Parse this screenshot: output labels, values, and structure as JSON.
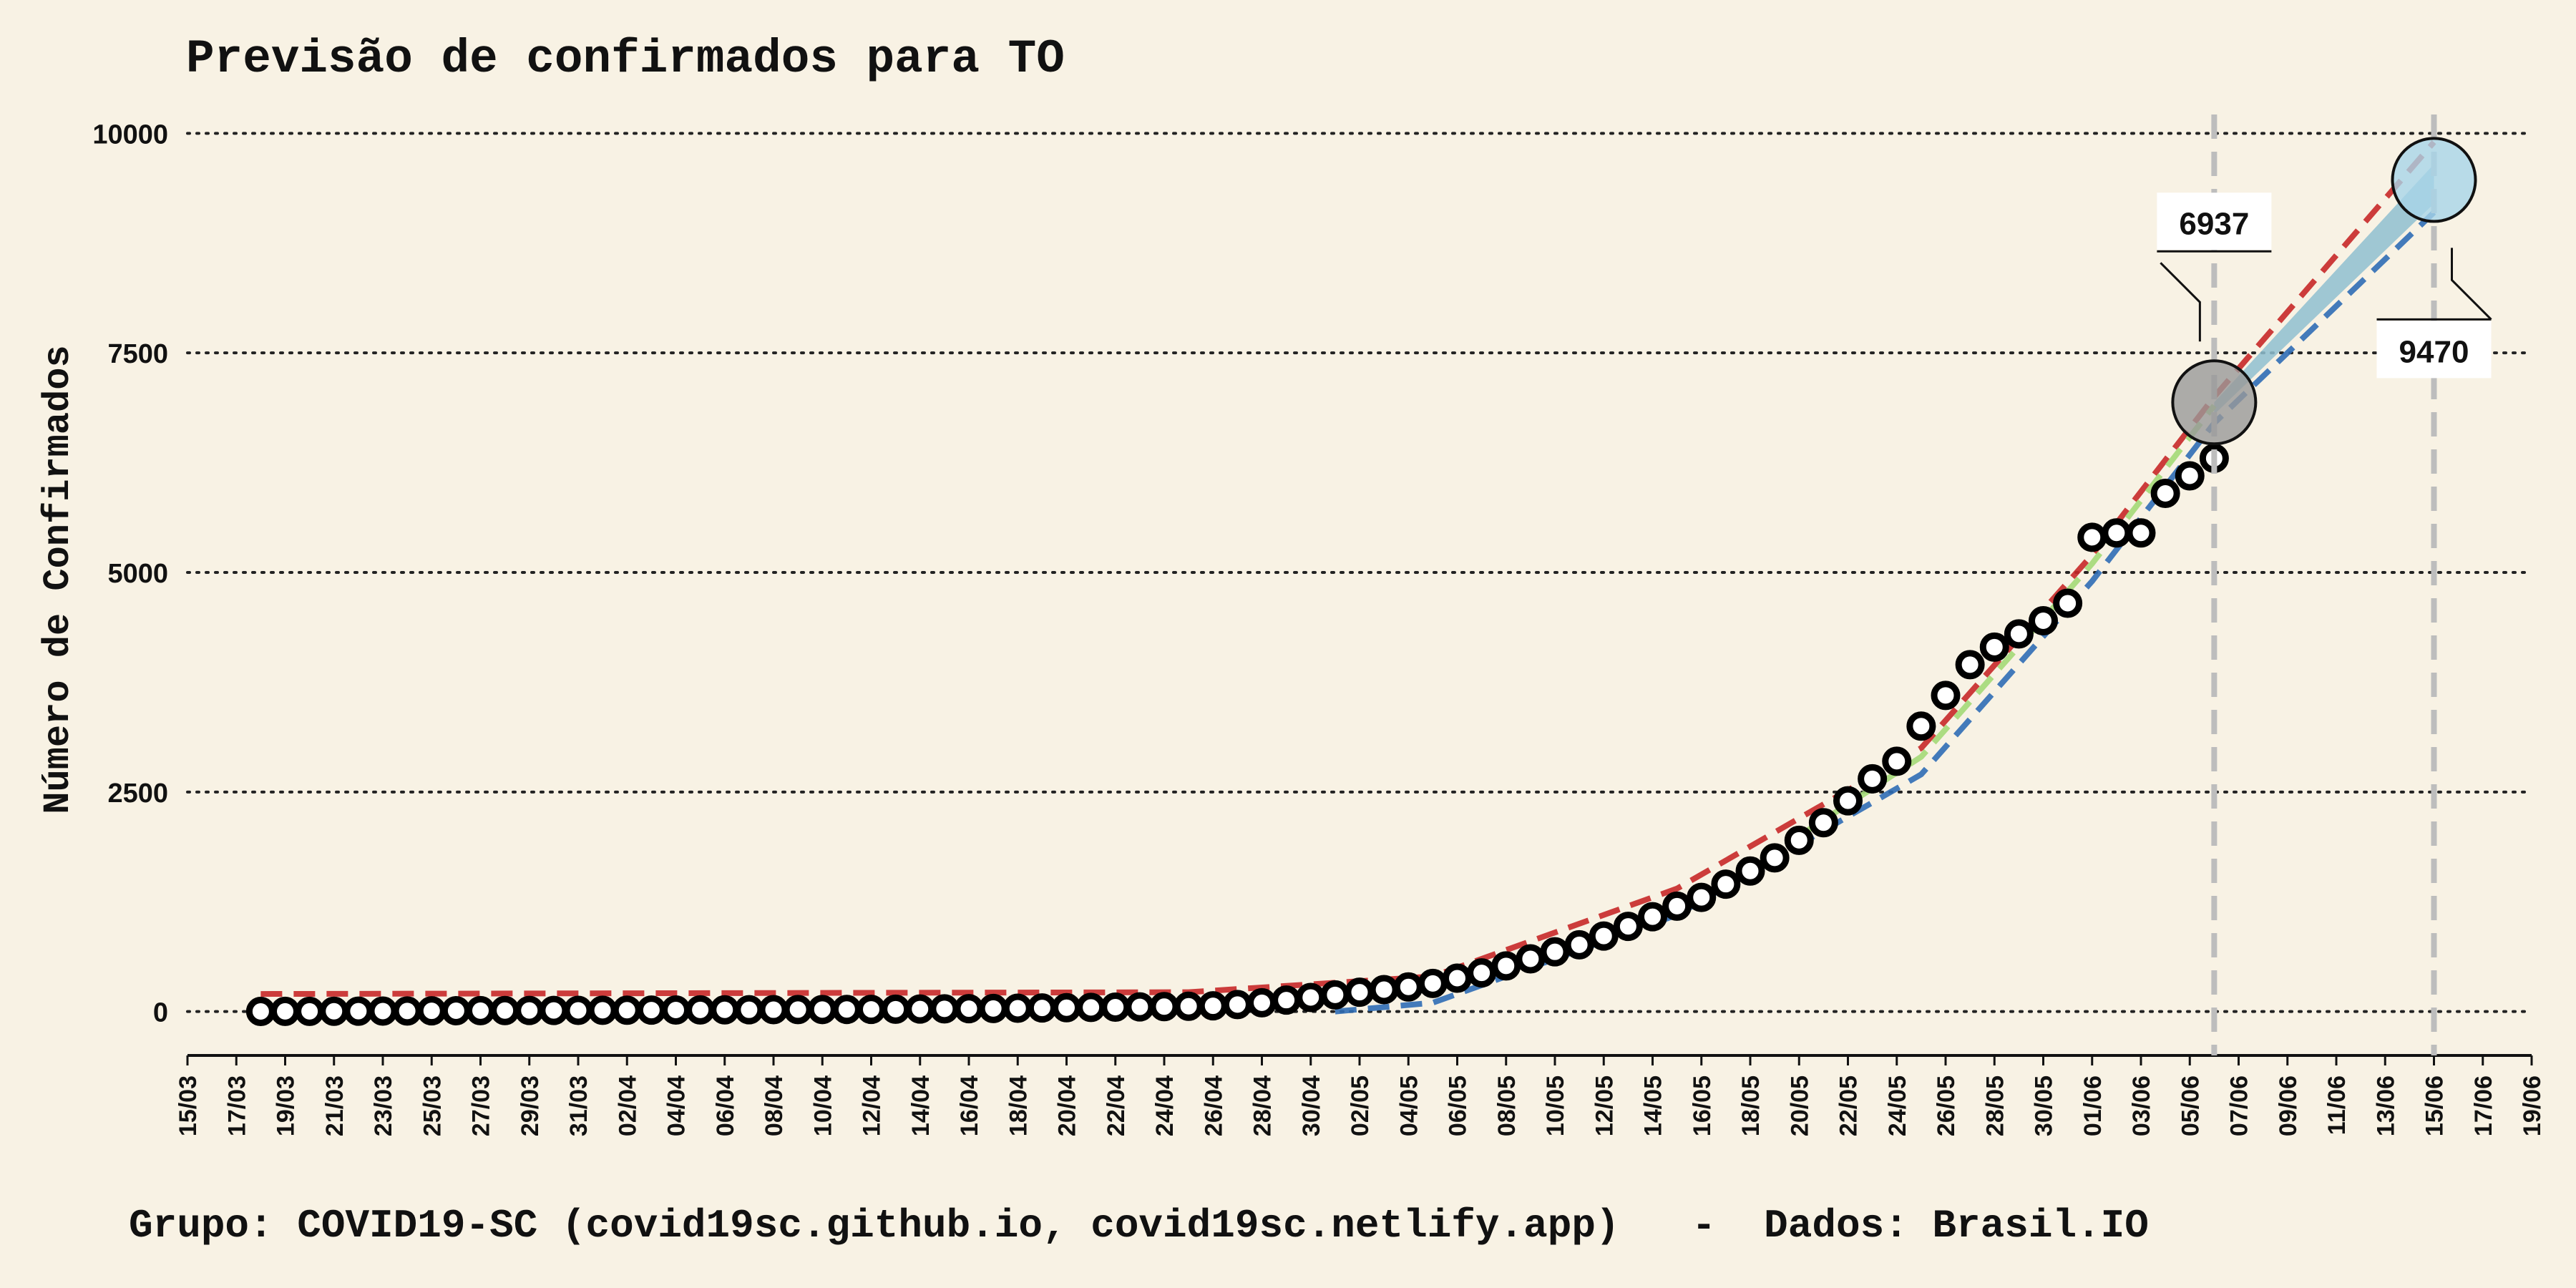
{
  "chart_data": {
    "type": "line",
    "title": "Previsão de confirmados para TO",
    "xlabel": "",
    "ylabel": "Número de Confirmados",
    "footer": "Grupo: COVID19-SC (covid19sc.github.io, covid19sc.netlify.app)   -  Dados: Brasil.IO",
    "ylim": [
      -500,
      10500
    ],
    "yticks": [
      0,
      2500,
      5000,
      7500,
      10000
    ],
    "grid": "horizontal dotted",
    "x_start": "2020-03-15",
    "x_end": "2020-06-19",
    "xticks": [
      "15/03",
      "17/03",
      "19/03",
      "21/03",
      "23/03",
      "25/03",
      "27/03",
      "29/03",
      "31/03",
      "02/04",
      "04/04",
      "06/04",
      "08/04",
      "10/04",
      "12/04",
      "14/04",
      "16/04",
      "18/04",
      "20/04",
      "22/04",
      "24/04",
      "26/04",
      "28/04",
      "30/04",
      "02/05",
      "04/05",
      "06/05",
      "08/05",
      "10/05",
      "12/05",
      "14/05",
      "16/05",
      "18/05",
      "20/05",
      "22/05",
      "24/05",
      "26/05",
      "28/05",
      "30/05",
      "01/06",
      "03/06",
      "05/06",
      "07/06",
      "09/06",
      "11/06",
      "13/06",
      "15/06",
      "17/06",
      "19/06"
    ],
    "observed": {
      "start_date": "2020-03-18",
      "values": [
        1,
        2,
        2,
        3,
        4,
        5,
        6,
        8,
        9,
        10,
        11,
        12,
        12,
        13,
        14,
        15,
        16,
        17,
        18,
        19,
        20,
        21,
        22,
        23,
        24,
        25,
        27,
        29,
        31,
        33,
        35,
        38,
        41,
        44,
        47,
        50,
        53,
        56,
        60,
        65,
        80,
        100,
        130,
        160,
        190,
        220,
        250,
        280,
        320,
        380,
        440,
        520,
        600,
        680,
        760,
        860,
        970,
        1080,
        1200,
        1300,
        1450,
        1600,
        1750,
        1950,
        2150,
        2400,
        2650,
        2850,
        3250,
        3600,
        3950,
        4150,
        4300,
        4450,
        4650,
        5400,
        5450,
        5450,
        5900,
        6100,
        6300
      ]
    },
    "forecast_lines": [
      {
        "color": "#c62828",
        "dates": [
          "2020-03-18",
          "2020-04-25",
          "2020-05-05",
          "2020-05-15",
          "2020-05-25",
          "2020-06-01",
          "2020-06-06",
          "2020-06-15"
        ],
        "values": [
          200,
          220,
          400,
          1400,
          3000,
          5200,
          7000,
          9900
        ]
      },
      {
        "color": "#2f6db5",
        "dates": [
          "2020-05-01",
          "2020-05-05",
          "2020-05-15",
          "2020-05-25",
          "2020-06-01",
          "2020-06-06",
          "2020-06-15"
        ],
        "values": [
          0,
          100,
          1100,
          2700,
          4900,
          6700,
          9100
        ]
      },
      {
        "color": "#a3d977",
        "dates": [
          "2020-05-20",
          "2020-05-25",
          "2020-06-01",
          "2020-06-06"
        ],
        "values": [
          2000,
          2900,
          5100,
          6900
        ]
      }
    ],
    "forecast_band": {
      "color": "#8fbfd0",
      "dates": [
        "2020-06-06",
        "2020-06-15"
      ],
      "upper": [
        6937,
        9650
      ],
      "lower": [
        6800,
        9200
      ]
    },
    "markers": [
      {
        "date": "2020-06-06",
        "value": 6937,
        "label": "6937",
        "color": "#999999"
      },
      {
        "date": "2020-06-15",
        "value": 9470,
        "label": "9470",
        "color": "#a8d4e8"
      }
    ]
  }
}
